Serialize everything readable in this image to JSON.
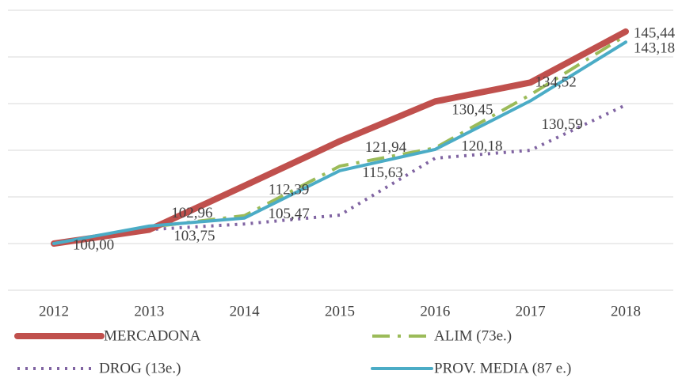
{
  "chart_data": {
    "type": "line",
    "x": [
      "2012",
      "2013",
      "2014",
      "2015",
      "2016",
      "2017",
      "2018"
    ],
    "ylim": [
      90,
      150
    ],
    "yticks": [
      90,
      100,
      110,
      120,
      130,
      140,
      150
    ],
    "grid": true,
    "series": [
      {
        "name": "MERCADONA",
        "color": "#c0504d",
        "style": "solid-thick",
        "values": [
          100.0,
          102.96,
          112.39,
          121.94,
          130.45,
          134.52,
          145.44
        ],
        "value_labels": [
          "100,00",
          "102,96",
          "112,39",
          "121,94",
          "130,45",
          "134,52",
          "145,44"
        ]
      },
      {
        "name": "ALIM (73e.)",
        "color": "#9bbb59",
        "style": "dashdot",
        "values": [
          100.0,
          103.5,
          106.0,
          116.6,
          120.5,
          131.9,
          144.6
        ]
      },
      {
        "name": "DROG (13e.)",
        "color": "#8064a2",
        "style": "dotted",
        "values": [
          100.0,
          103.0,
          104.2,
          106.1,
          118.3,
          120.0,
          129.7
        ]
      },
      {
        "name": "PROV. MEDIA (87 e.)",
        "color": "#4bacc6",
        "style": "solid",
        "values": [
          100.0,
          103.75,
          105.47,
          115.63,
          120.18,
          130.59,
          143.18
        ],
        "value_labels": [
          null,
          "103,75",
          "105,47",
          "115,63",
          "120,18",
          "130,59",
          "143,18"
        ]
      }
    ],
    "legend": "bottom"
  }
}
